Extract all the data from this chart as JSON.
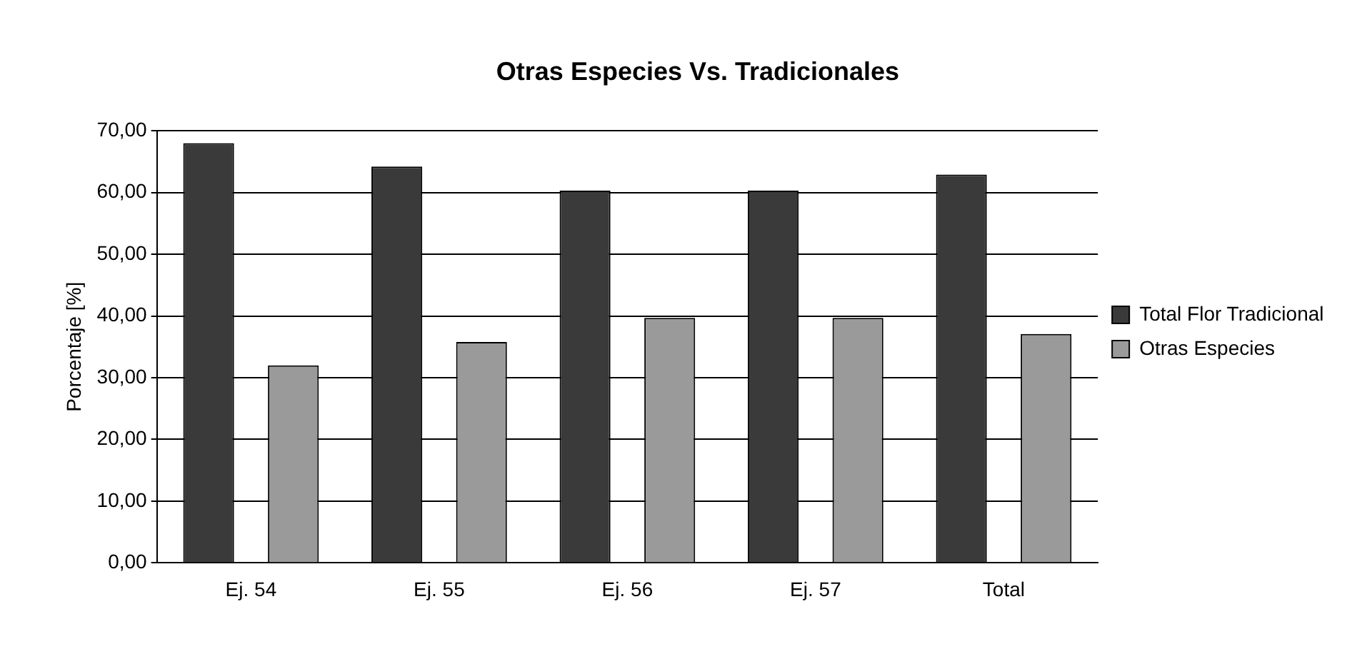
{
  "chart_data": {
    "type": "bar",
    "title": "Otras Especies Vs. Tradicionales",
    "ylabel": "Porcentaje [%]",
    "categories": [
      "Ej. 54",
      "Ej. 55",
      "Ej. 56",
      "Ej. 57",
      "Total"
    ],
    "series": [
      {
        "name": "Total Flor Tradicional",
        "color": "#3a3a3a",
        "values": [
          68,
          64.2,
          60.3,
          60.3,
          62.9
        ]
      },
      {
        "name": "Otras Especies",
        "color": "#9a9a9a",
        "values": [
          32,
          35.8,
          39.7,
          39.7,
          37.1
        ]
      }
    ],
    "ylim": [
      0,
      70
    ],
    "yticks": [
      {
        "value": 0,
        "label": "0,00"
      },
      {
        "value": 10,
        "label": "10,00"
      },
      {
        "value": 20,
        "label": "20,00"
      },
      {
        "value": 30,
        "label": "30,00"
      },
      {
        "value": 40,
        "label": "40,00"
      },
      {
        "value": 50,
        "label": "50,00"
      },
      {
        "value": 60,
        "label": "60,00"
      },
      {
        "value": 70,
        "label": "70,00"
      }
    ],
    "grid": "y",
    "legend": "right"
  }
}
